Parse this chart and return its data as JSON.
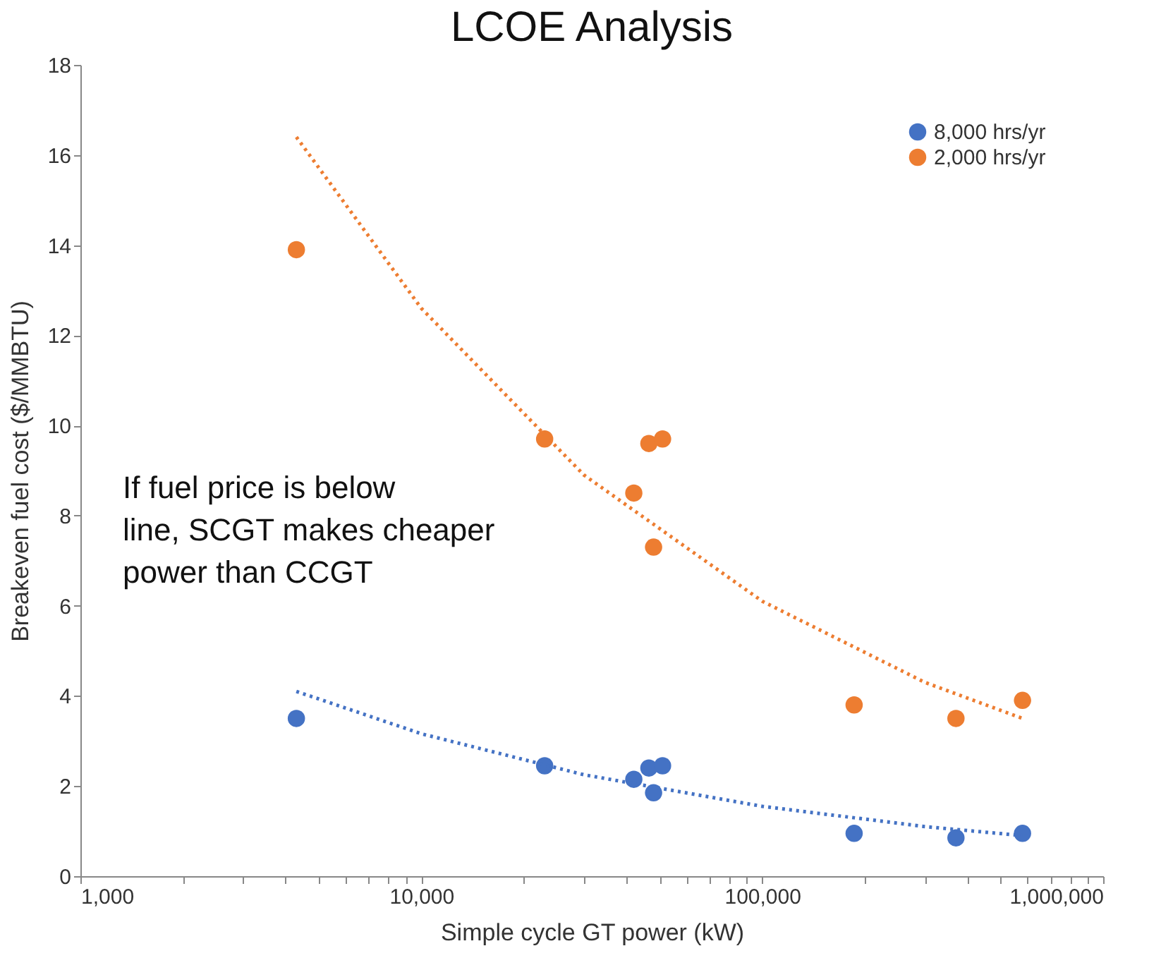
{
  "chart_data": {
    "type": "scatter",
    "title": "LCOE Analysis",
    "xlabel": "Simple cycle GT power (kW)",
    "ylabel": "Breakeven fuel cost ($/MMBTU)",
    "log": "x",
    "xlim": [
      1000,
      1000000
    ],
    "ylim": [
      0,
      18
    ],
    "yticks": [
      0,
      2,
      4,
      6,
      8,
      10,
      12,
      14,
      16,
      18
    ],
    "xticks": [
      {
        "value": 1000,
        "label": "1,000"
      },
      {
        "value": 2000,
        "label": null
      },
      {
        "value": 3000,
        "label": null
      },
      {
        "value": 4000,
        "label": null
      },
      {
        "value": 5000,
        "label": null
      },
      {
        "value": 6000,
        "label": null
      },
      {
        "value": 7000,
        "label": null
      },
      {
        "value": 8000,
        "label": null
      },
      {
        "value": 9000,
        "label": null
      },
      {
        "value": 10000,
        "label": "10,000"
      },
      {
        "value": 20000,
        "label": null
      },
      {
        "value": 30000,
        "label": null
      },
      {
        "value": 40000,
        "label": null
      },
      {
        "value": 50000,
        "label": null
      },
      {
        "value": 60000,
        "label": null
      },
      {
        "value": 70000,
        "label": null
      },
      {
        "value": 80000,
        "label": null
      },
      {
        "value": 90000,
        "label": null
      },
      {
        "value": 100000,
        "label": "100,000"
      },
      {
        "value": 200000,
        "label": null
      },
      {
        "value": 300000,
        "label": null
      },
      {
        "value": 400000,
        "label": null
      },
      {
        "value": 500000,
        "label": null
      },
      {
        "value": 600000,
        "label": null
      },
      {
        "value": 700000,
        "label": null
      },
      {
        "value": 800000,
        "label": null
      },
      {
        "value": 900000,
        "label": null
      },
      {
        "value": 1000000,
        "label": "1,000,000"
      }
    ],
    "grid": false,
    "legend": "top right",
    "marker": "circle",
    "annotations": [
      "If fuel price is below\nline, SCGT makes cheaper\npower than CCGT"
    ],
    "series": [
      {
        "name": "8,000 hrs/yr",
        "color": "#4472c4",
        "x": [
          4300,
          23000,
          42000,
          46500,
          51000,
          48000,
          186000,
          370000,
          580000
        ],
        "values": [
          3.5,
          2.45,
          2.15,
          2.4,
          2.45,
          1.85,
          0.95,
          0.85,
          0.95
        ]
      },
      {
        "name": "2,000 hrs/yr",
        "color": "#ed7d31",
        "x": [
          4300,
          23000,
          42000,
          46500,
          51000,
          48000,
          186000,
          370000,
          580000
        ],
        "values": [
          13.9,
          9.7,
          8.5,
          9.6,
          9.7,
          7.3,
          3.8,
          3.5,
          3.9
        ]
      },
      {
        "color": "#4472c4",
        "type": "line",
        "marker": "none",
        "line_style": "dotted",
        "x": [
          4300,
          10000,
          30000,
          100000,
          300000,
          580000
        ],
        "values": [
          4.1,
          3.16,
          2.25,
          1.55,
          1.1,
          0.9
        ]
      },
      {
        "color": "#ed7d31",
        "type": "line",
        "marker": "none",
        "line_style": "dotted",
        "x": [
          4300,
          10000,
          30000,
          100000,
          300000,
          580000
        ],
        "values": [
          16.4,
          12.6,
          8.9,
          6.1,
          4.3,
          3.5
        ]
      }
    ]
  }
}
